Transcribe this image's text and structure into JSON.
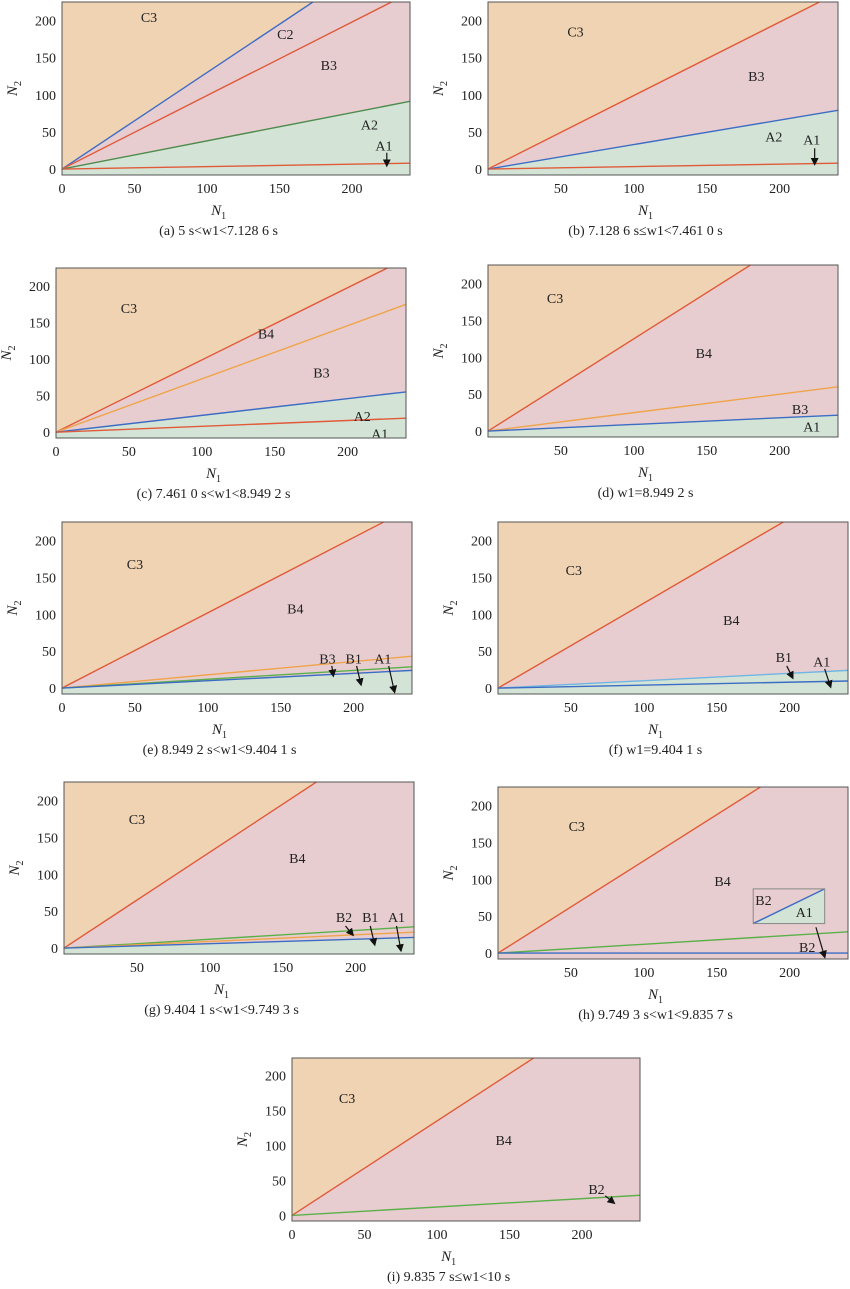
{
  "colors": {
    "C3": "#f0d3b2",
    "B": "#e7cdd0",
    "A": "#d3e4d6",
    "red": "#e05a3a",
    "blue": "#3d6cc4",
    "orange": "#f0a44a",
    "green": "#5bb04a",
    "darkgreen": "#4e8a4c",
    "lightblue": "#72b5e3",
    "frame": "#555555",
    "inset_frame": "#888888"
  },
  "axes": {
    "xlabel": "N",
    "xlabel_sub": "1",
    "ylabel": "N",
    "ylabel_sub": "2",
    "xlim": [
      0,
      240
    ],
    "ylim": [
      -8,
      225
    ]
  },
  "chart_data": [
    {
      "type": "area",
      "caption": "(a) 5 s<w1<7.128 6 s",
      "xticks": [
        "0",
        "50",
        "100",
        "150",
        "200"
      ],
      "yticks": [
        "0",
        "50",
        "100",
        "150",
        "200"
      ],
      "regions": [
        {
          "name": "C3",
          "fill": "C3",
          "bound": 1.3
        },
        {
          "name": "B",
          "fill": "B",
          "bound": 0.38
        },
        {
          "name": "A",
          "fill": "A",
          "bound": null
        }
      ],
      "lines": [
        {
          "slope": 1.3,
          "color": "blue"
        },
        {
          "slope": 0.99,
          "color": "red"
        },
        {
          "slope": 0.38,
          "color": "darkgreen"
        },
        {
          "slope": 0.033,
          "color": "red"
        }
      ],
      "labels": [
        {
          "text": "C3",
          "x": 60,
          "y": 205
        },
        {
          "text": "C2",
          "x": 154,
          "y": 182
        },
        {
          "text": "B3",
          "x": 184,
          "y": 140
        },
        {
          "text": "A2",
          "x": 212,
          "y": 60
        },
        {
          "text": "A1",
          "x": 222,
          "y": 32
        }
      ],
      "arrows": [
        {
          "from": [
            224,
            22
          ],
          "to": [
            224,
            5
          ]
        }
      ]
    },
    {
      "type": "area",
      "caption": "(b) 7.128 6 s≤w1<7.461 0 s",
      "xticks": [
        "50",
        "100",
        "150",
        "200"
      ],
      "yticks": [
        "0",
        "50",
        "100",
        "150",
        "200"
      ],
      "regions": [
        {
          "name": "C3",
          "fill": "C3",
          "bound": 0.99
        },
        {
          "name": "B",
          "fill": "B",
          "bound": 0.33
        },
        {
          "name": "A",
          "fill": "A",
          "bound": null
        }
      ],
      "lines": [
        {
          "slope": 0.99,
          "color": "red"
        },
        {
          "slope": 0.33,
          "color": "blue"
        },
        {
          "slope": 0.033,
          "color": "red"
        }
      ],
      "labels": [
        {
          "text": "C3",
          "x": 60,
          "y": 185
        },
        {
          "text": "B3",
          "x": 184,
          "y": 125
        },
        {
          "text": "A2",
          "x": 196,
          "y": 44
        },
        {
          "text": "A1",
          "x": 222,
          "y": 40
        }
      ],
      "arrows": [
        {
          "from": [
            224,
            28
          ],
          "to": [
            224,
            7
          ]
        }
      ]
    },
    {
      "type": "area",
      "caption": "(c) 7.461 0 s<w1<8.949 2 s",
      "xticks": [
        "0",
        "50",
        "100",
        "150",
        "200"
      ],
      "yticks": [
        "0",
        "50",
        "100",
        "150",
        "200"
      ],
      "regions": [
        {
          "name": "C3",
          "fill": "C3",
          "bound": 0.99
        },
        {
          "name": "B",
          "fill": "B",
          "bound": 0.23
        },
        {
          "name": "A",
          "fill": "A",
          "bound": null
        }
      ],
      "lines": [
        {
          "slope": 0.99,
          "color": "red"
        },
        {
          "slope": 0.73,
          "color": "orange"
        },
        {
          "slope": 0.23,
          "color": "blue"
        },
        {
          "slope": 0.08,
          "color": "red"
        }
      ],
      "labels": [
        {
          "text": "C3",
          "x": 50,
          "y": 170
        },
        {
          "text": "B4",
          "x": 144,
          "y": 135
        },
        {
          "text": "B3",
          "x": 182,
          "y": 82
        },
        {
          "text": "A2",
          "x": 210,
          "y": 22
        },
        {
          "text": "A1",
          "x": 222,
          "y": -2
        }
      ],
      "arrows": []
    },
    {
      "type": "area",
      "caption": "(d) w1=8.949 2 s",
      "xticks": [
        "50",
        "100",
        "150",
        "200"
      ],
      "yticks": [
        "0",
        "50",
        "100",
        "150",
        "200"
      ],
      "regions": [
        {
          "name": "C3",
          "fill": "C3",
          "bound": 1.25
        },
        {
          "name": "B",
          "fill": "B",
          "bound": 0.09
        },
        {
          "name": "A",
          "fill": "A",
          "bound": null
        }
      ],
      "lines": [
        {
          "slope": 1.25,
          "color": "red"
        },
        {
          "slope": 0.25,
          "color": "orange"
        },
        {
          "slope": 0.09,
          "color": "blue"
        }
      ],
      "labels": [
        {
          "text": "C3",
          "x": 46,
          "y": 180
        },
        {
          "text": "B4",
          "x": 148,
          "y": 106
        },
        {
          "text": "B3",
          "x": 214,
          "y": 30
        },
        {
          "text": "A1",
          "x": 222,
          "y": 6
        }
      ],
      "arrows": []
    },
    {
      "type": "area",
      "caption": "(e) 8.949 2 s<w1<9.404 1 s",
      "xticks": [
        "0",
        "50",
        "100",
        "150",
        "200"
      ],
      "yticks": [
        "0",
        "50",
        "100",
        "150",
        "200"
      ],
      "regions": [
        {
          "name": "C3",
          "fill": "C3",
          "bound": 1.02
        },
        {
          "name": "B",
          "fill": "B",
          "bound": 0.1
        },
        {
          "name": "A",
          "fill": "A",
          "bound": null
        }
      ],
      "lines": [
        {
          "slope": 1.02,
          "color": "red"
        },
        {
          "slope": 0.18,
          "color": "orange"
        },
        {
          "slope": 0.12,
          "color": "green"
        },
        {
          "slope": 0.1,
          "color": "blue"
        }
      ],
      "labels": [
        {
          "text": "C3",
          "x": 50,
          "y": 168
        },
        {
          "text": "B4",
          "x": 160,
          "y": 108
        },
        {
          "text": "B3",
          "x": 182,
          "y": 40
        },
        {
          "text": "B1",
          "x": 200,
          "y": 40
        },
        {
          "text": "A1",
          "x": 220,
          "y": 40
        }
      ],
      "arrows": [
        {
          "from": [
            185,
            30
          ],
          "to": [
            186,
            17
          ]
        },
        {
          "from": [
            202,
            30
          ],
          "to": [
            205,
            5
          ]
        },
        {
          "from": [
            224,
            30
          ],
          "to": [
            228,
            -5
          ]
        }
      ]
    },
    {
      "type": "area",
      "caption": "(f) w1=9.404 1 s",
      "xticks": [
        "50",
        "100",
        "150",
        "200"
      ],
      "yticks": [
        "0",
        "50",
        "100",
        "150",
        "200"
      ],
      "regions": [
        {
          "name": "C3",
          "fill": "C3",
          "bound": 1.15
        },
        {
          "name": "B",
          "fill": "B",
          "bound": 0.1
        },
        {
          "name": "A",
          "fill": "A",
          "bound": null
        }
      ],
      "lines": [
        {
          "slope": 1.15,
          "color": "red"
        },
        {
          "slope": 0.1,
          "color": "lightblue"
        },
        {
          "slope": 0.04,
          "color": "blue"
        }
      ],
      "labels": [
        {
          "text": "C3",
          "x": 52,
          "y": 160
        },
        {
          "text": "B4",
          "x": 160,
          "y": 92
        },
        {
          "text": "B1",
          "x": 196,
          "y": 42
        },
        {
          "text": "A1",
          "x": 222,
          "y": 36
        }
      ],
      "arrows": [
        {
          "from": [
            198,
            30
          ],
          "to": [
            202,
            14
          ]
        },
        {
          "from": [
            224,
            26
          ],
          "to": [
            228,
            2
          ]
        }
      ]
    },
    {
      "type": "area",
      "caption": "(g) 9.404 1 s<w1<9.749 3 s",
      "xticks": [
        "50",
        "100",
        "150",
        "200"
      ],
      "yticks": [
        "0",
        "50",
        "100",
        "150",
        "200"
      ],
      "regions": [
        {
          "name": "C3",
          "fill": "C3",
          "bound": 1.3
        },
        {
          "name": "B",
          "fill": "B",
          "bound": 0.06
        },
        {
          "name": "A",
          "fill": "A",
          "bound": null
        }
      ],
      "lines": [
        {
          "slope": 1.3,
          "color": "red"
        },
        {
          "slope": 0.12,
          "color": "green"
        },
        {
          "slope": 0.09,
          "color": "orange"
        },
        {
          "slope": 0.06,
          "color": "blue"
        }
      ],
      "labels": [
        {
          "text": "C3",
          "x": 50,
          "y": 175
        },
        {
          "text": "B4",
          "x": 160,
          "y": 122
        },
        {
          "text": "B2",
          "x": 192,
          "y": 42
        },
        {
          "text": "B1",
          "x": 210,
          "y": 42
        },
        {
          "text": "A1",
          "x": 228,
          "y": 42
        }
      ],
      "arrows": [
        {
          "from": [
            193,
            30
          ],
          "to": [
            198,
            18
          ]
        },
        {
          "from": [
            210,
            30
          ],
          "to": [
            213,
            5
          ]
        },
        {
          "from": [
            228,
            30
          ],
          "to": [
            231,
            -3
          ]
        }
      ]
    },
    {
      "type": "area",
      "caption": "(h) 9.749 3 s<w1<9.835 7 s",
      "xticks": [
        "50",
        "100",
        "150",
        "200"
      ],
      "yticks": [
        "0",
        "50",
        "100",
        "150",
        "200"
      ],
      "regions": [
        {
          "name": "C3",
          "fill": "C3",
          "bound": 1.25
        },
        {
          "name": "B",
          "fill": "B",
          "bound": null
        }
      ],
      "lines": [
        {
          "slope": 1.25,
          "color": "red"
        },
        {
          "slope": 0.12,
          "color": "green"
        },
        {
          "slope": 0.0,
          "color": "blue"
        }
      ],
      "inset": {
        "x0": 175,
        "x1": 224,
        "y0": 40,
        "y1": 87,
        "upper": "B2",
        "lower": "A1"
      },
      "labels": [
        {
          "text": "C3",
          "x": 54,
          "y": 172
        },
        {
          "text": "B4",
          "x": 154,
          "y": 98
        },
        {
          "text": "B2",
          "x": 182,
          "y": 72
        },
        {
          "text": "A1",
          "x": 210,
          "y": 56
        },
        {
          "text": "B2",
          "x": 212,
          "y": 8
        }
      ],
      "arrows": [
        {
          "from": [
            218,
            35
          ],
          "to": [
            224,
            -5
          ]
        }
      ]
    },
    {
      "type": "area",
      "caption": "(i) 9.835 7 s≤w1<10 s",
      "xticks": [
        "0",
        "50",
        "100",
        "150",
        "200"
      ],
      "yticks": [
        "0",
        "50",
        "100",
        "150",
        "200"
      ],
      "regions": [
        {
          "name": "C3",
          "fill": "C3",
          "bound": 1.35
        },
        {
          "name": "B",
          "fill": "B",
          "bound": null
        }
      ],
      "lines": [
        {
          "slope": 1.35,
          "color": "red"
        },
        {
          "slope": 0.12,
          "color": "green"
        }
      ],
      "labels": [
        {
          "text": "C3",
          "x": 38,
          "y": 168
        },
        {
          "text": "B4",
          "x": 146,
          "y": 108
        },
        {
          "text": "B2",
          "x": 210,
          "y": 38
        }
      ],
      "arrows": [
        {
          "from": [
            216,
            28
          ],
          "to": [
            222,
            18
          ]
        }
      ]
    }
  ]
}
